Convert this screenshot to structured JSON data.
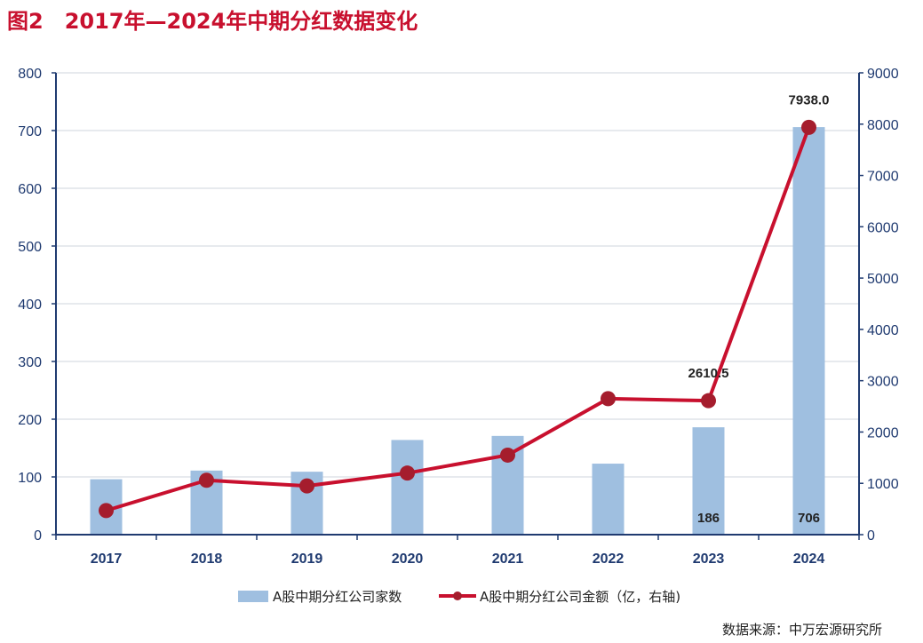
{
  "title": "图2　2017年—2024年中期分红数据变化",
  "source": "数据来源：中万宏源研究所",
  "colors": {
    "title": "#c8102e",
    "axis": "#1f3a70",
    "grid": "#cfd4dc",
    "bar": "#9fbfe0",
    "line": "#c8102e",
    "marker": "#a51d2d"
  },
  "chart_data": {
    "type": "bar",
    "categories": [
      "2017",
      "2018",
      "2019",
      "2020",
      "2021",
      "2022",
      "2023",
      "2024"
    ],
    "series": [
      {
        "name": "A股中期分红公司家数",
        "type": "bar",
        "axis": "left",
        "values": [
          96,
          111,
          109,
          164,
          171,
          123,
          186,
          706
        ],
        "data_labels": [
          "",
          "",
          "",
          "",
          "",
          "",
          "186",
          "706"
        ]
      },
      {
        "name": "A股中期分红公司金额（亿，右轴)",
        "type": "line",
        "axis": "right",
        "values": [
          470,
          1060,
          950,
          1200,
          1550,
          2650,
          2610.5,
          7938.0
        ],
        "data_labels": [
          "",
          "",
          "",
          "",
          "",
          "",
          "2610.5",
          "7938.0"
        ]
      }
    ],
    "y_left": {
      "min": 0,
      "max": 800,
      "ticks": [
        "0",
        "100",
        "200",
        "300",
        "400",
        "500",
        "600",
        "700",
        "800"
      ]
    },
    "y_right": {
      "min": 0,
      "max": 9000,
      "ticks": [
        "0",
        "1000",
        "2000",
        "3000",
        "4000",
        "5000",
        "6000",
        "7000",
        "8000",
        "9000"
      ]
    },
    "grid": true,
    "legend_position": "bottom"
  }
}
